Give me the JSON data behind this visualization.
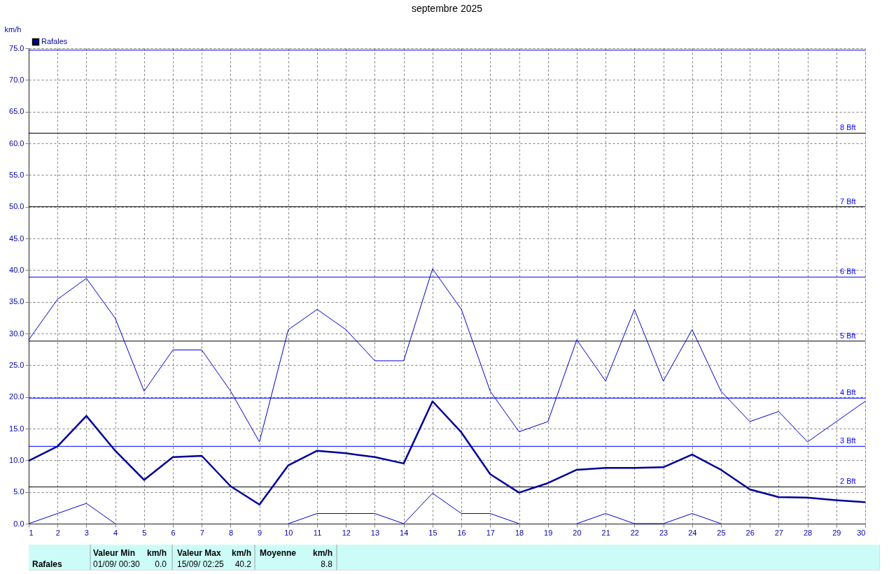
{
  "chart_data": {
    "type": "line",
    "title": "septembre 2025",
    "ylabel": "km/h",
    "x": [
      1,
      2,
      3,
      4,
      5,
      6,
      7,
      8,
      9,
      10,
      11,
      12,
      13,
      14,
      15,
      16,
      17,
      18,
      19,
      20,
      21,
      22,
      23,
      24,
      25,
      26,
      27,
      28,
      29,
      30
    ],
    "series": [
      {
        "color": "#0000cc",
        "values": [
          29.0,
          35.4,
          38.7,
          32.4,
          20.9,
          27.4,
          27.4,
          20.9,
          12.9,
          30.6,
          33.8,
          30.6,
          25.7,
          25.7,
          40.2,
          33.8,
          20.9,
          14.5,
          16.1,
          29.0,
          22.5,
          33.8,
          22.5,
          30.6,
          20.9,
          16.1,
          17.7,
          12.9,
          16.1,
          19.3
        ]
      },
      {
        "name": "Rafales",
        "color": "#000099",
        "values": [
          9.9,
          12.2,
          17.0,
          11.5,
          6.9,
          10.5,
          10.7,
          5.9,
          3.0,
          9.2,
          11.5,
          11.1,
          10.5,
          9.5,
          19.3,
          14.4,
          7.8,
          4.9,
          6.4,
          8.5,
          8.8,
          8.8,
          8.9,
          10.9,
          8.5,
          5.4,
          4.2,
          4.1,
          3.7,
          3.4
        ]
      },
      {
        "color": "#0000cc",
        "values": [
          0.0,
          1.6,
          3.2,
          0.0,
          null,
          null,
          null,
          null,
          null,
          0.0,
          1.6,
          1.6,
          1.6,
          0.0,
          4.8,
          1.6,
          1.6,
          0.0,
          null,
          0.0,
          1.6,
          0.0,
          0.0,
          1.6,
          0.0,
          null,
          null,
          null,
          null,
          null
        ]
      }
    ],
    "xlim": [
      1,
      30
    ],
    "xticks": [
      1,
      2,
      3,
      4,
      5,
      6,
      7,
      8,
      9,
      10,
      11,
      12,
      13,
      14,
      15,
      16,
      17,
      18,
      19,
      20,
      21,
      22,
      23,
      24,
      25,
      26,
      27,
      28,
      29,
      30
    ],
    "ylim": [
      0,
      75
    ],
    "yticks": [
      {
        "value": 0,
        "label": "0.0"
      },
      {
        "value": 5,
        "label": "5.0"
      },
      {
        "value": 10,
        "label": "10.0"
      },
      {
        "value": 15,
        "label": "15.0"
      },
      {
        "value": 20,
        "label": "20.0"
      },
      {
        "value": 25,
        "label": "25.0"
      },
      {
        "value": 30,
        "label": "30.0"
      },
      {
        "value": 35,
        "label": "35.0"
      },
      {
        "value": 40,
        "label": "40.0"
      },
      {
        "value": 45,
        "label": "45.0"
      },
      {
        "value": 50,
        "label": "50.0"
      },
      {
        "value": 55,
        "label": "55.0"
      },
      {
        "value": 60,
        "label": "60.0"
      },
      {
        "value": 65,
        "label": "65.0"
      },
      {
        "value": 70,
        "label": "70.0"
      },
      {
        "value": 75,
        "label": "75.0"
      }
    ],
    "ref_lines": [
      {
        "axis": "y",
        "value": 5.8,
        "label": "2 Bft",
        "color": "#000000"
      },
      {
        "axis": "y",
        "value": 12.2,
        "label": "3 Bft",
        "color": "#0000ff"
      },
      {
        "axis": "y",
        "value": 19.8,
        "label": "4 Bft",
        "color": "#0000ff"
      },
      {
        "axis": "y",
        "value": 28.8,
        "label": "5 Bft",
        "color": "#000000"
      },
      {
        "axis": "y",
        "value": 38.9,
        "label": "6 Bft",
        "color": "#0000ff"
      },
      {
        "axis": "y",
        "value": 50.0,
        "label": "7 Bft",
        "color": "#000000"
      },
      {
        "axis": "y",
        "value": 61.6,
        "label": "8 Bft",
        "color": "#000000"
      },
      {
        "axis": "y",
        "value": 74.7,
        "label": null,
        "color": "#0000ff"
      }
    ],
    "annotations": [
      "Rafales",
      "Valeur Min",
      "km/h",
      "01/09/ 00:30",
      "0.0",
      "Valeur Max",
      "km/h",
      "15/09/ 02:25",
      "40.2",
      "Moyenne",
      "km/h",
      "8.8"
    ],
    "grid": true,
    "legend": "top left",
    "marker": "none",
    "line_style": "solid"
  }
}
